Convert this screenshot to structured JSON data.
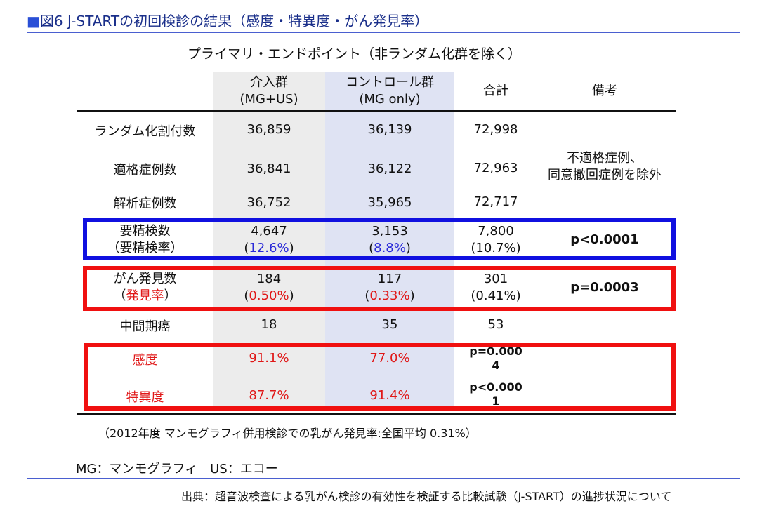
{
  "figure_title": {
    "marker": "■",
    "text": "図6  J-STARTの初回検診の結果（感度・特異度・がん発見率）"
  },
  "table_title": "プライマリ・エンドポイント（非ランダム化群を除く）",
  "headers": {
    "intervention": [
      "介入群",
      "(MG+US)"
    ],
    "control": [
      "コントロール群",
      "(MG only)"
    ],
    "total": "合計",
    "remarks": "備考"
  },
  "rows": {
    "randomized": {
      "label": "ランダム化割付数",
      "intervention": "36,859",
      "control": "36,139",
      "total": "72,998"
    },
    "eligible": {
      "label": "適格症例数",
      "intervention": "36,841",
      "control": "36,122",
      "total": "72,963",
      "remark": [
        "不適格症例、",
        "同意撤回症例を除外"
      ]
    },
    "analyzed": {
      "label": "解析症例数",
      "intervention": "36,752",
      "control": "35,965",
      "total": "72,717"
    },
    "recall": {
      "label": [
        "要精検数",
        "（要精検率）"
      ],
      "intervention": [
        "4,647",
        "(",
        "12.6%",
        ")"
      ],
      "control": [
        "3,153",
        "(",
        "8.8%",
        ")"
      ],
      "total": [
        "7,800",
        "(10.7%)"
      ],
      "remark": "p<0.0001"
    },
    "cancer": {
      "label": [
        "がん発見数",
        "（",
        "発見率",
        "）"
      ],
      "intervention": [
        "184",
        "(",
        "0.50%",
        ")"
      ],
      "control": [
        "117",
        "(",
        "0.33%",
        ")"
      ],
      "total": [
        "301",
        "(0.41%)"
      ],
      "remark": "p=0.0003"
    },
    "interval": {
      "label": "中間期癌",
      "intervention": "18",
      "control": "35",
      "total": "53"
    },
    "sensitivity": {
      "label": "感度",
      "intervention": "91.1%",
      "control": "77.0%",
      "total": [
        "p=0.000",
        "4"
      ]
    },
    "specificity": {
      "label": "特異度",
      "intervention": "87.7%",
      "control": "91.4%",
      "total": [
        "p<0.000",
        "1"
      ]
    }
  },
  "note": "（2012年度 マンモグラフィ併用検診での乳がん発見率:全国平均 0.31%）",
  "legend": "MG：マンモグラフィ　US：エコー",
  "source": "出典：超音波検査による乳がん検診の有効性を検証する比較試験（J-START）の進捗状況について",
  "colors": {
    "title": "#1a2f8a",
    "frame": "#4a5fd0",
    "blue_box": "#1010e0",
    "red_box": "#f01010",
    "red_text": "#e01818",
    "blue_text": "#2a2ad8",
    "intervention_bg": "#ececec",
    "control_bg": "#dfe3f3"
  }
}
